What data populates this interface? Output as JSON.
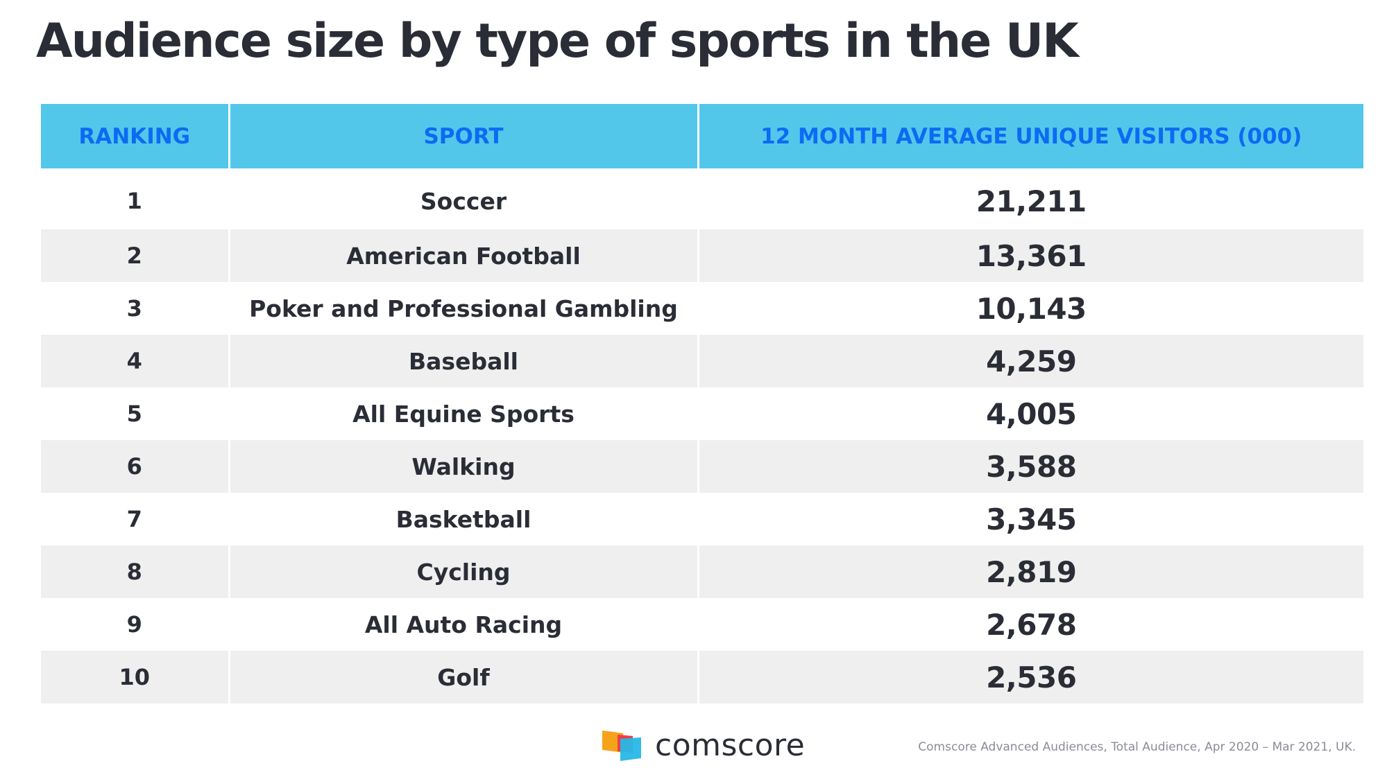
{
  "chart_data": {
    "type": "table",
    "title": "Audience size by type of sports in the UK",
    "columns": [
      "RANKING",
      "SPORT",
      "12 MONTH AVERAGE UNIQUE VISITORS (000)"
    ],
    "rows": [
      {
        "rank": "1",
        "sport": "Soccer",
        "value": "21,211"
      },
      {
        "rank": "2",
        "sport": "American Football",
        "value": "13,361"
      },
      {
        "rank": "3",
        "sport": "Poker and Professional Gambling",
        "value": "10,143"
      },
      {
        "rank": "4",
        "sport": "Baseball",
        "value": "4,259"
      },
      {
        "rank": "5",
        "sport": "All Equine Sports",
        "value": "4,005"
      },
      {
        "rank": "6",
        "sport": "Walking",
        "value": "3,588"
      },
      {
        "rank": "7",
        "sport": "Basketball",
        "value": "3,345"
      },
      {
        "rank": "8",
        "sport": "Cycling",
        "value": "2,819"
      },
      {
        "rank": "9",
        "sport": "All Auto Racing",
        "value": "2,678"
      },
      {
        "rank": "10",
        "sport": "Golf",
        "value": "2,536"
      }
    ]
  },
  "footer": {
    "brand": "comscore",
    "source": "Comscore Advanced Audiences, Total Audience, Apr 2020 – Mar 2021, UK."
  },
  "colors": {
    "header_bg": "#53c7ea",
    "header_text": "#0a6cf2",
    "stripe_bg": "#efefef",
    "text": "#2b2d36",
    "logo_orange": "#f7a21b",
    "logo_red": "#ee3f48",
    "logo_blue": "#27b8e6"
  }
}
